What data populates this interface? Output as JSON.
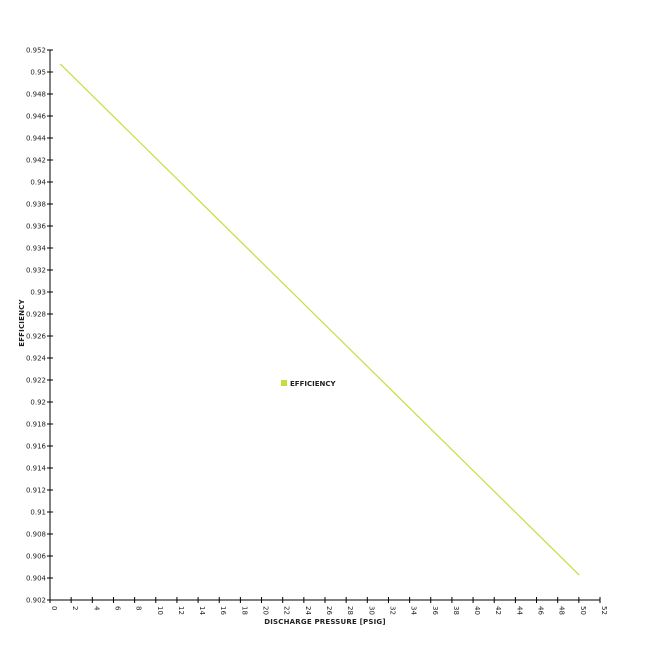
{
  "chart_data": {
    "type": "line",
    "title": "",
    "xlabel": "DISCHARGE PRESSURE [PSIG]",
    "ylabel": "EFFICIENCY",
    "xlim": [
      0,
      52
    ],
    "ylim": [
      0.902,
      0.952
    ],
    "x_ticks": [
      "0",
      "2",
      "4",
      "6",
      "8",
      "10",
      "12",
      "14",
      "16",
      "18",
      "20",
      "22",
      "24",
      "26",
      "28",
      "30",
      "32",
      "34",
      "36",
      "38",
      "40",
      "42",
      "44",
      "46",
      "48",
      "50",
      "52"
    ],
    "y_ticks": [
      "0.902",
      "0.904",
      "0.906",
      "0.908",
      "0.91",
      "0.912",
      "0.914",
      "0.916",
      "0.918",
      "0.92",
      "0.922",
      "0.924",
      "0.926",
      "0.928",
      "0.93",
      "0.932",
      "0.934",
      "0.936",
      "0.938",
      "0.94",
      "0.942",
      "0.944",
      "0.946",
      "0.948",
      "0.95",
      "0.952"
    ],
    "grid": false,
    "legend_position": "center",
    "series": [
      {
        "name": "EFFICIENCY",
        "color": "#c8dc3c",
        "x": [
          1,
          50
        ],
        "y": [
          0.9507,
          0.9043
        ]
      }
    ]
  }
}
